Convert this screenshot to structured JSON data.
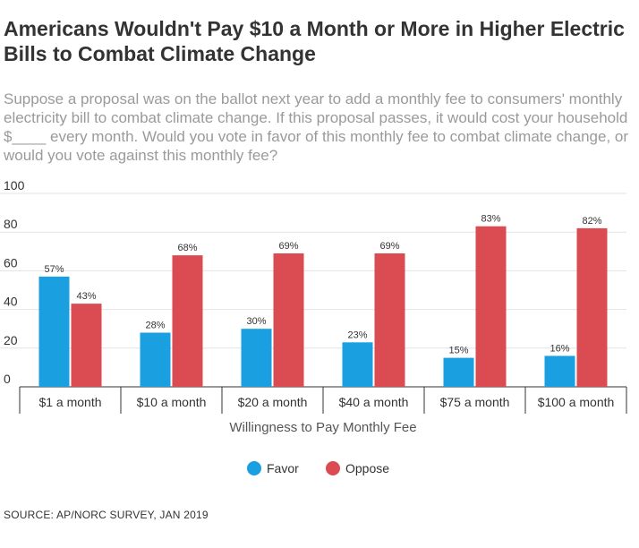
{
  "title": "Americans Wouldn't Pay $10 a Month or More in Higher Electric Bills to Combat Climate Change",
  "subtitle": "Suppose a proposal was on the ballot next year to add a monthly fee to consumers' monthly electricity bill to combat climate change. If this proposal passes, it would cost your household $____ every month. Would you vote in favor of this monthly fee to combat climate change, or would you vote against this monthly fee?",
  "source": "SOURCE: AP/NORC SURVEY, JAN 2019",
  "chart_data": {
    "type": "bar",
    "categories": [
      "$1 a month",
      "$10 a month",
      "$20 a month",
      "$40 a month",
      "$75 a month",
      "$100 a month"
    ],
    "series": [
      {
        "name": "Favor",
        "color": "#1a9fe0",
        "values": [
          57,
          28,
          30,
          23,
          15,
          16
        ],
        "labels": [
          "57%",
          "28%",
          "30%",
          "23%",
          "15%",
          "16%"
        ]
      },
      {
        "name": "Oppose",
        "color": "#db4c52",
        "values": [
          43,
          68,
          69,
          69,
          83,
          82
        ],
        "labels": [
          "43%",
          "68%",
          "69%",
          "69%",
          "83%",
          "82%"
        ]
      }
    ],
    "yticks": [
      0,
      20,
      40,
      60,
      80,
      100
    ],
    "ytick_labels": [
      "0",
      "20",
      "40",
      "60",
      "80",
      "100"
    ],
    "ylim": [
      0,
      100
    ],
    "xlabel": "Willingness to Pay Monthly Fee",
    "ylabel": "",
    "grid": true,
    "legend_position": "bottom"
  }
}
